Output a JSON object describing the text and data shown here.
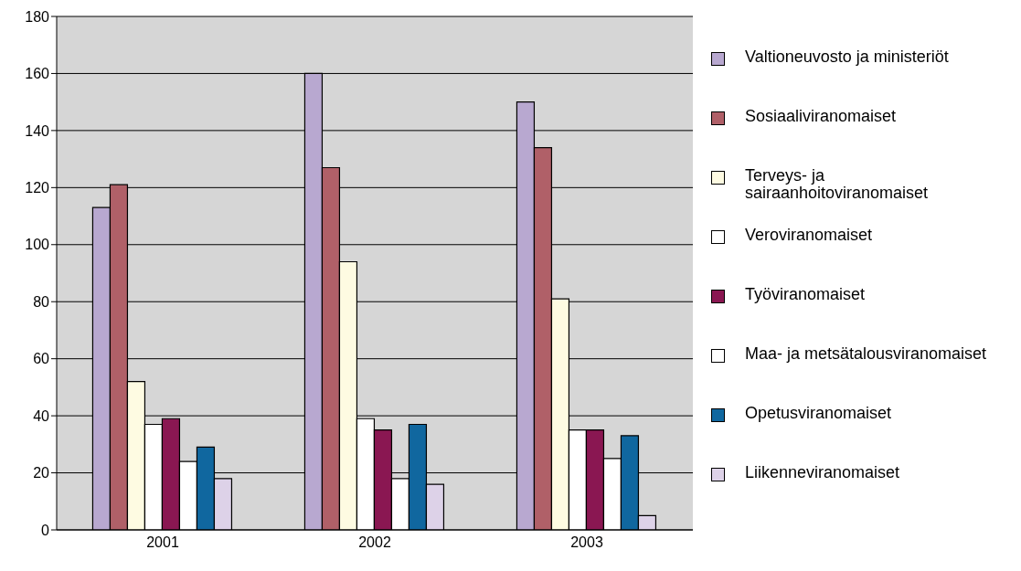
{
  "chart_data": {
    "type": "bar",
    "categories": [
      "2001",
      "2002",
      "2003"
    ],
    "series": [
      {
        "name": "Valtioneuvosto ja ministeriöt",
        "color": "#b8a8d0",
        "values": [
          113,
          160,
          150
        ]
      },
      {
        "name": "Sosiaaliviranomaiset",
        "color": "#b06068",
        "values": [
          121,
          127,
          134
        ]
      },
      {
        "name": "Terveys- ja sairaanhoitoviranomaiset",
        "color": "#fefbe2",
        "values": [
          52,
          94,
          81
        ]
      },
      {
        "name": "Veroviranomaiset",
        "color": "#ffffff",
        "values": [
          37,
          39,
          35
        ]
      },
      {
        "name": "Työviranomaiset",
        "color": "#8a1752",
        "values": [
          39,
          35,
          35
        ]
      },
      {
        "name": "Maa- ja metsätalousviranomaiset",
        "color": "#ffffff",
        "values": [
          24,
          18,
          25
        ]
      },
      {
        "name": "Opetusviranomaiset",
        "color": "#10679f",
        "values": [
          29,
          37,
          33
        ]
      },
      {
        "name": "Liikenneviranomaiset",
        "color": "#ddd2e8",
        "values": [
          18,
          16,
          5
        ]
      }
    ],
    "ylim": [
      0,
      180
    ],
    "yticks": [
      0,
      20,
      40,
      60,
      80,
      100,
      120,
      140,
      160,
      180
    ],
    "grid": "y",
    "legend": "right"
  }
}
